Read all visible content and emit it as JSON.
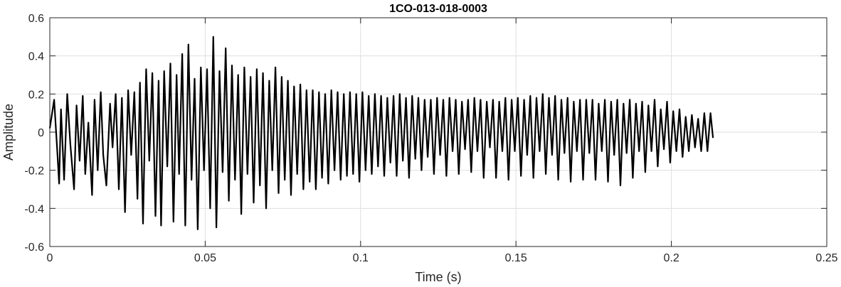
{
  "chart_data": {
    "type": "line",
    "title": "1CO-013-018-0003",
    "xlabel": "Time (s)",
    "ylabel": "Amplitude",
    "xlim": [
      0,
      0.25
    ],
    "ylim": [
      -0.6,
      0.6
    ],
    "x_ticks": [
      0,
      0.05,
      0.1,
      0.15,
      0.2,
      0.25
    ],
    "x_tick_labels": [
      "0",
      "0.05",
      "0.1",
      "0.15",
      "0.2",
      "0.25"
    ],
    "y_ticks": [
      -0.6,
      -0.4,
      -0.2,
      0,
      0.2,
      0.4,
      0.6
    ],
    "y_tick_labels": [
      "-0.6",
      "-0.4",
      "-0.2",
      "0",
      "0.2",
      "0.4",
      "0.6"
    ],
    "grid": true,
    "colors": {
      "line": "#000000",
      "grid": "#dfdfdf",
      "axes": "#262626"
    },
    "series": [
      {
        "x": [
          0,
          0.0014,
          0.0024,
          0.003,
          0.0036,
          0.0046,
          0.0056,
          0.0066,
          0.0078,
          0.0086,
          0.0096,
          0.0106,
          0.0114,
          0.0124,
          0.0136,
          0.0144,
          0.0154,
          0.0164,
          0.0172,
          0.0182,
          0.0194,
          0.0202,
          0.0212,
          0.0222,
          0.0232,
          0.0242,
          0.0252,
          0.0262,
          0.0272,
          0.0282,
          0.029,
          0.03,
          0.031,
          0.032,
          0.033,
          0.034,
          0.035,
          0.0358,
          0.0368,
          0.0378,
          0.0388,
          0.0398,
          0.0408,
          0.0416,
          0.0426,
          0.0436,
          0.0446,
          0.0456,
          0.0466,
          0.0476,
          0.0486,
          0.0496,
          0.0506,
          0.0516,
          0.0526,
          0.0536,
          0.0546,
          0.0556,
          0.0566,
          0.0576,
          0.0586,
          0.0596,
          0.0606,
          0.0616,
          0.0626,
          0.0636,
          0.0646,
          0.0656,
          0.0666,
          0.0676,
          0.0686,
          0.0696,
          0.0706,
          0.0716,
          0.0726,
          0.0736,
          0.0746,
          0.0756,
          0.0766,
          0.0776,
          0.0786,
          0.0796,
          0.0806,
          0.0816,
          0.0826,
          0.0836,
          0.0846,
          0.0856,
          0.0866,
          0.0876,
          0.0886,
          0.0896,
          0.0906,
          0.0916,
          0.0926,
          0.0936,
          0.0946,
          0.0956,
          0.0966,
          0.0976,
          0.0986,
          0.0996,
          0.1006,
          0.1016,
          0.1026,
          0.1036,
          0.1046,
          0.1056,
          0.1066,
          0.1076,
          0.1086,
          0.1096,
          0.1106,
          0.1116,
          0.1126,
          0.1136,
          0.1146,
          0.1156,
          0.1166,
          0.1176,
          0.1186,
          0.1196,
          0.1206,
          0.1216,
          0.1226,
          0.1236,
          0.1246,
          0.1256,
          0.1266,
          0.1276,
          0.1286,
          0.1296,
          0.1306,
          0.1316,
          0.1326,
          0.1336,
          0.1346,
          0.1356,
          0.1366,
          0.1376,
          0.1386,
          0.1396,
          0.1406,
          0.1416,
          0.1426,
          0.1436,
          0.1446,
          0.1456,
          0.1466,
          0.1476,
          0.1486,
          0.1496,
          0.1506,
          0.1516,
          0.1526,
          0.1536,
          0.1546,
          0.1556,
          0.1566,
          0.1576,
          0.1586,
          0.1596,
          0.1606,
          0.1616,
          0.1626,
          0.1636,
          0.1646,
          0.1656,
          0.1666,
          0.1676,
          0.1686,
          0.1696,
          0.1706,
          0.1716,
          0.1726,
          0.1736,
          0.1746,
          0.1756,
          0.1766,
          0.1776,
          0.1786,
          0.1796,
          0.1806,
          0.1816,
          0.1826,
          0.1836,
          0.1846,
          0.1856,
          0.1866,
          0.1876,
          0.1886,
          0.1896,
          0.1906,
          0.1916,
          0.1926,
          0.1936,
          0.1946,
          0.1956,
          0.1966,
          0.1976,
          0.1986,
          0.1996,
          0.2006,
          0.2016,
          0.2026,
          0.2036,
          0.2046,
          0.2056,
          0.2066,
          0.2076,
          0.2086,
          0.2096,
          0.2106,
          0.2116,
          0.2126,
          0.2134
        ],
        "y": [
          0.02,
          0.17,
          -0.1,
          -0.27,
          0.12,
          -0.25,
          0.2,
          -0.06,
          -0.3,
          0.14,
          -0.15,
          0.19,
          -0.22,
          0.05,
          -0.33,
          0.17,
          -0.2,
          0.21,
          -0.12,
          -0.28,
          0.15,
          -0.08,
          0.2,
          -0.3,
          0.18,
          -0.42,
          0.22,
          -0.12,
          0.21,
          -0.35,
          0.26,
          -0.48,
          0.33,
          -0.15,
          0.31,
          -0.44,
          0.27,
          -0.49,
          0.32,
          -0.18,
          0.36,
          -0.47,
          0.3,
          -0.22,
          0.41,
          -0.49,
          0.46,
          -0.25,
          0.28,
          -0.51,
          0.34,
          -0.2,
          0.33,
          -0.4,
          0.5,
          -0.5,
          0.32,
          -0.21,
          0.44,
          -0.36,
          0.35,
          -0.25,
          0.3,
          -0.43,
          0.34,
          -0.22,
          0.29,
          -0.37,
          0.33,
          -0.28,
          0.31,
          -0.4,
          0.27,
          -0.2,
          0.34,
          -0.32,
          0.29,
          -0.25,
          0.27,
          -0.33,
          0.24,
          -0.22,
          0.25,
          -0.3,
          0.22,
          -0.26,
          0.22,
          -0.3,
          0.21,
          -0.24,
          0.2,
          -0.27,
          0.22,
          -0.2,
          0.21,
          -0.25,
          0.2,
          -0.23,
          0.21,
          -0.22,
          0.2,
          -0.26,
          0.21,
          -0.2,
          0.19,
          -0.22,
          0.2,
          -0.18,
          0.19,
          -0.23,
          0.18,
          -0.16,
          0.19,
          -0.23,
          0.2,
          -0.15,
          0.18,
          -0.24,
          0.19,
          -0.14,
          0.18,
          -0.2,
          0.17,
          -0.13,
          0.17,
          -0.22,
          0.18,
          -0.12,
          0.17,
          -0.23,
          0.18,
          -0.1,
          0.17,
          -0.22,
          0.16,
          -0.09,
          0.17,
          -0.21,
          0.18,
          -0.1,
          0.17,
          -0.24,
          0.16,
          -0.08,
          0.17,
          -0.24,
          0.16,
          -0.1,
          0.18,
          -0.25,
          0.17,
          -0.1,
          0.18,
          -0.23,
          0.17,
          -0.12,
          0.19,
          -0.24,
          0.18,
          -0.1,
          0.2,
          -0.22,
          0.18,
          -0.12,
          0.19,
          -0.25,
          0.17,
          -0.11,
          0.18,
          -0.26,
          0.16,
          -0.1,
          0.17,
          -0.25,
          0.17,
          -0.11,
          0.17,
          -0.25,
          0.15,
          -0.1,
          0.17,
          -0.26,
          0.16,
          -0.12,
          0.17,
          -0.28,
          0.15,
          -0.11,
          0.17,
          -0.24,
          0.15,
          -0.1,
          0.16,
          -0.21,
          0.14,
          -0.1,
          0.17,
          -0.18,
          0.12,
          -0.09,
          0.16,
          -0.16,
          0.11,
          -0.1,
          0.12,
          -0.13,
          0.08,
          -0.1,
          0.09,
          -0.08,
          0.07,
          -0.1,
          0.1,
          -0.1,
          0.1,
          -0.03
        ]
      }
    ]
  }
}
